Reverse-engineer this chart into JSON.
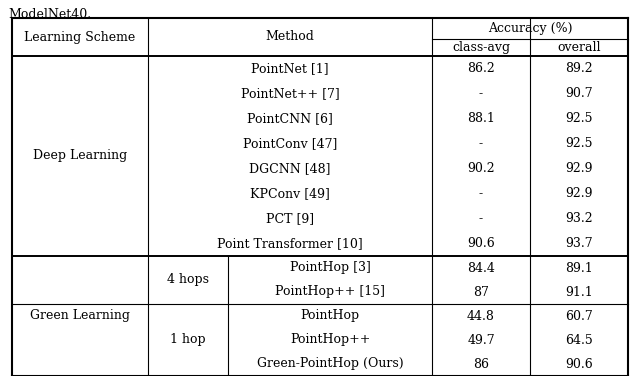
{
  "title_text": "ModelNet40.",
  "deep_learning_rows": [
    {
      "method": "PointNet [1]",
      "class_avg": "86.2",
      "overall": "89.2"
    },
    {
      "method": "PointNet++ [7]",
      "class_avg": "-",
      "overall": "90.7"
    },
    {
      "method": "PointCNN [6]",
      "class_avg": "88.1",
      "overall": "92.5"
    },
    {
      "method": "PointConv [47]",
      "class_avg": "-",
      "overall": "92.5"
    },
    {
      "method": "DGCNN [48]",
      "class_avg": "90.2",
      "overall": "92.9"
    },
    {
      "method": "KPConv [49]",
      "class_avg": "-",
      "overall": "92.9"
    },
    {
      "method": "PCT [9]",
      "class_avg": "-",
      "overall": "93.2"
    },
    {
      "method": "Point Transformer [10]",
      "class_avg": "90.6",
      "overall": "93.7"
    }
  ],
  "green_learning_4hops": [
    {
      "method": "PointHop [3]",
      "class_avg": "84.4",
      "overall": "89.1"
    },
    {
      "method": "PointHop++ [15]",
      "class_avg": "87",
      "overall": "91.1"
    }
  ],
  "green_learning_1hop": [
    {
      "method": "PointHop",
      "class_avg": "44.8",
      "overall": "60.7"
    },
    {
      "method": "PointHop++",
      "class_avg": "49.7",
      "overall": "64.5"
    },
    {
      "method": "Green-PointHop (Ours)",
      "class_avg": "86",
      "overall": "90.6"
    }
  ],
  "bg_color": "#ffffff",
  "text_color": "#000000",
  "font_size": 9
}
